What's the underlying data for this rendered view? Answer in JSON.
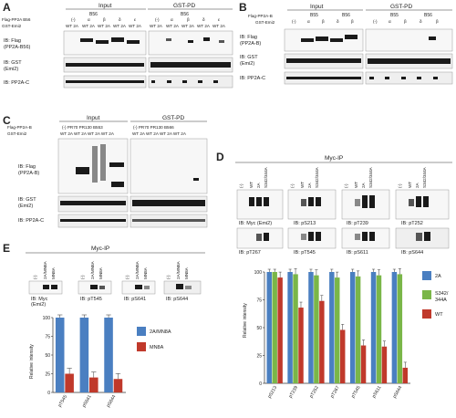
{
  "panels": {
    "A": {
      "label": "A",
      "input_title": "Input",
      "gstpd_title": "GST-PD",
      "b56_left": "B56",
      "b56_right": "B56",
      "row_flag": "Flag-PP2A B56",
      "row_gst": "GST-Emi2",
      "lanes_top": [
        "(-)",
        "α",
        "β",
        "δ",
        "ε"
      ],
      "lanes_wt2a": "WT 2A",
      "blot1": "IB: Flag\n(PP2A-B56)",
      "blot1_a": "IB: Flag",
      "blot1_b": "(PP2A-B56)",
      "blot2_a": "IB: GST",
      "blot2_b": "(Emi2)",
      "blot3": "IB: PP2A-C"
    },
    "B": {
      "label": "B",
      "input_title": "Input",
      "gstpd_title": "GST-PD",
      "row_flag": "Flag-PP2A-B",
      "row_gst": "GST-Emi2",
      "b55": "B55",
      "b56": "B56",
      "lanes_top": [
        "(-)",
        "α",
        "β",
        "δ",
        "β"
      ],
      "blot1_a": "IB: Flag",
      "blot1_b": "(PP2A-B)",
      "blot2_a": "IB: GST",
      "blot2_b": "(Emi2)",
      "blot3": "IB: PP2A-C"
    },
    "C": {
      "label": "C",
      "input_title": "Input",
      "gstpd_title": "GST-PD",
      "row_flag": "Flag-PP2A-B",
      "row_gst": "GST-Emi2",
      "lanes_top_input": "(-)   PR70  PR130  B553",
      "lanes_top_gst": "(-)   PR70  PR130  B566",
      "wt2a_row": "WT 2A  WT 2A  WT 2A  WT 2A",
      "blot1_a": "IB: Flag",
      "blot1_b": "(PP2A-B)",
      "blot2_a": "IB: GST",
      "blot2_b": "(Emi2)",
      "blot3": "IB: PP2A-C"
    },
    "D": {
      "label": "D",
      "title": "Myc-IP",
      "lanes": [
        "(-)",
        "WT",
        "2A",
        "S342/344A"
      ],
      "blots_top": [
        "IB: Myc (Emi2)",
        "IB: pS213",
        "IB: pT239",
        "IB: pT252"
      ],
      "blots_bottom": [
        "IB: pT267",
        "IB: pT545",
        "IB: pS611",
        "IB: pS644"
      ],
      "ylabel": "Relative intensity",
      "legend": [
        "2A",
        "S342/\n344A",
        "WT"
      ],
      "legend_a": "2A",
      "legend_b1": "S342/",
      "legend_b2": "344A",
      "legend_c": "WT"
    },
    "E": {
      "label": "E",
      "title": "Myc-IP",
      "lanes": [
        "(-)",
        "2A/MN8A",
        "MN8A"
      ],
      "blots": [
        "IB: Myc\n(Emi2)",
        "IB: pT545",
        "IB: pS641",
        "IB: pS644"
      ],
      "blot0_a": "IB: Myc",
      "blot0_b": "(Emi2)",
      "blot1": "IB: pT545",
      "blot2": "IB: pS641",
      "blot3": "IB: pS644",
      "ylabel": "Relative intensity",
      "legend": [
        "2A/MN8A",
        "MN8A"
      ]
    }
  },
  "colors": {
    "blue": "#4a7fc1",
    "green": "#7ab648",
    "red": "#c0392b"
  },
  "chart_data": [
    {
      "type": "bar",
      "panel": "D",
      "categories": [
        "pS213",
        "pT239",
        "pT252",
        "pT267",
        "pT545",
        "pS611",
        "pS644"
      ],
      "series": [
        {
          "name": "2A",
          "values": [
            100,
            100,
            100,
            100,
            100,
            100,
            100
          ]
        },
        {
          "name": "S342/344A",
          "values": [
            100,
            98,
            97,
            95,
            96,
            97,
            98
          ]
        },
        {
          "name": "WT",
          "values": [
            95,
            68,
            74,
            48,
            34,
            33,
            14
          ]
        }
      ],
      "ylabel": "Relative intensity",
      "ylim": [
        0,
        100
      ],
      "yticks": [
        0,
        25,
        50,
        75,
        100
      ]
    },
    {
      "type": "bar",
      "panel": "E",
      "categories": [
        "pT545",
        "pS641",
        "pS644"
      ],
      "series": [
        {
          "name": "2A/MN8A",
          "values": [
            100,
            100,
            100
          ]
        },
        {
          "name": "MN8A",
          "values": [
            25,
            20,
            18
          ]
        }
      ],
      "ylabel": "Relative intensity",
      "ylim": [
        0,
        100
      ],
      "yticks": [
        0,
        25,
        50,
        75,
        100
      ]
    }
  ]
}
